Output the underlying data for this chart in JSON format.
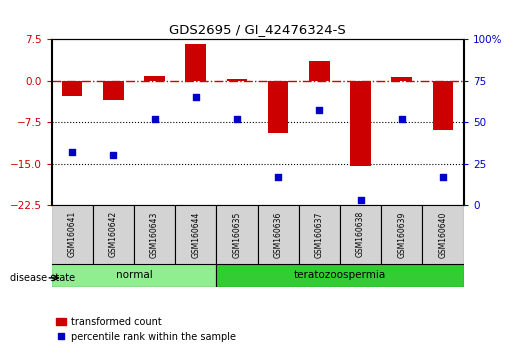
{
  "title": "GDS2695 / GI_42476324-S",
  "samples": [
    "GSM160641",
    "GSM160642",
    "GSM160643",
    "GSM160644",
    "GSM160635",
    "GSM160636",
    "GSM160637",
    "GSM160638",
    "GSM160639",
    "GSM160640"
  ],
  "bar_values": [
    -2.8,
    -3.5,
    0.8,
    6.5,
    0.3,
    -9.5,
    3.5,
    -15.5,
    0.7,
    -9.0
  ],
  "dot_values_pct": [
    32,
    30,
    52,
    65,
    52,
    17,
    57,
    3,
    52,
    17
  ],
  "ylim_left": [
    -22.5,
    7.5
  ],
  "ylim_right": [
    0,
    100
  ],
  "yticks_left": [
    7.5,
    0,
    -7.5,
    -15,
    -22.5
  ],
  "yticks_right": [
    100,
    75,
    50,
    25,
    0
  ],
  "hline_y": 0,
  "dotted_lines": [
    -7.5,
    -15
  ],
  "groups": [
    {
      "label": "normal",
      "start": 0,
      "end": 4,
      "color": "#90EE90"
    },
    {
      "label": "teratozoospermia",
      "start": 4,
      "end": 10,
      "color": "#32CD32"
    }
  ],
  "bar_color": "#CC0000",
  "dot_color": "#0000CC",
  "disease_state_label": "disease state",
  "legend_bar_label": "transformed count",
  "legend_dot_label": "percentile rank within the sample",
  "bar_width": 0.5,
  "background_color": "#ffffff",
  "tick_label_color_left": "#CC0000",
  "tick_label_color_right": "#0000CC"
}
